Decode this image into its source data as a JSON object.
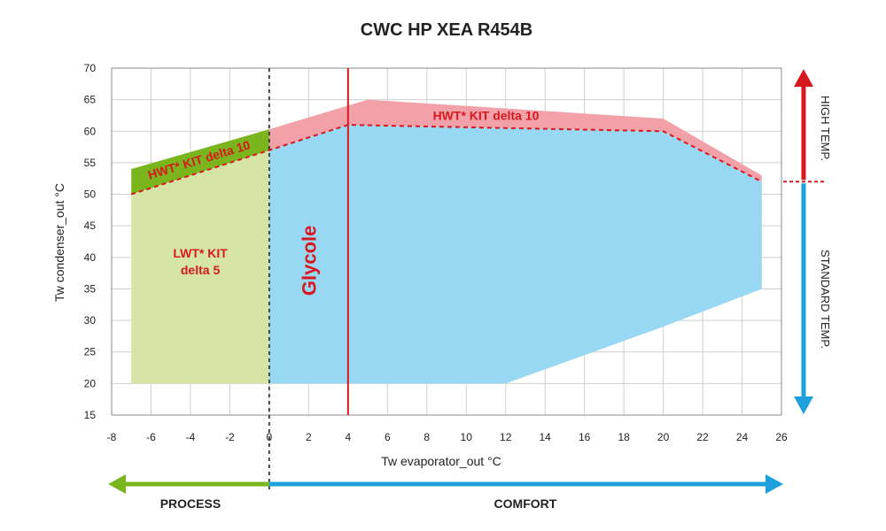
{
  "chart_data": {
    "type": "area",
    "title": "CWC HP XEA R454B",
    "xlabel": "Tw evaporator_out °C",
    "ylabel": "Tw condenser_out °C",
    "xlim": [
      -8,
      26
    ],
    "ylim": [
      15,
      70
    ],
    "x_ticks": [
      -8,
      -6,
      -4,
      -2,
      0,
      2,
      4,
      6,
      8,
      10,
      12,
      14,
      16,
      18,
      20,
      22,
      24,
      26
    ],
    "y_ticks": [
      15,
      20,
      25,
      30,
      35,
      40,
      45,
      50,
      55,
      60,
      65,
      70
    ],
    "grid": true,
    "regions": [
      {
        "name": "lwt-kit",
        "color": "#d6e4a6",
        "points": [
          [
            -7,
            20
          ],
          [
            0,
            20
          ],
          [
            0,
            57
          ],
          [
            -7,
            50
          ]
        ]
      },
      {
        "name": "hwt-kit-process",
        "color": "#7ab51d",
        "points": [
          [
            -7,
            50
          ],
          [
            0,
            57
          ],
          [
            0,
            60.3
          ],
          [
            -7,
            54
          ]
        ]
      },
      {
        "name": "standard",
        "color": "#99d8f2",
        "points": [
          [
            0,
            20
          ],
          [
            12,
            20
          ],
          [
            20,
            29
          ],
          [
            25,
            35
          ],
          [
            25,
            52
          ],
          [
            20,
            60
          ],
          [
            4,
            61
          ],
          [
            0,
            57
          ]
        ]
      },
      {
        "name": "hwt-kit-comfort",
        "color": "#f2a1a8",
        "points": [
          [
            0,
            57
          ],
          [
            4,
            61
          ],
          [
            20,
            60
          ],
          [
            25,
            52
          ],
          [
            25,
            53
          ],
          [
            20,
            62
          ],
          [
            5,
            65
          ],
          [
            0,
            60.3
          ]
        ]
      }
    ],
    "boundary_dashed": [
      [
        -7,
        50
      ],
      [
        0,
        57
      ],
      [
        4,
        61
      ],
      [
        20,
        60
      ],
      [
        25,
        52
      ]
    ],
    "process_comfort_divider_x": 0,
    "glycol_line_x": 4,
    "labels": {
      "hwt_process": "HWT* KIT delta 10",
      "hwt_comfort": "HWT* KIT delta 10",
      "lwt_line1": "LWT* KIT",
      "lwt_line2": "delta 5",
      "glycol": "Glycole"
    },
    "right_bands": {
      "high": "HIGH TEMP.",
      "standard": "STANDARD TEMP.",
      "divider_y": 52,
      "high_color": "#d7191f",
      "standard_color": "#1ea0dc"
    },
    "bottom_bands": {
      "process": "PROCESS",
      "comfort": "COMFORT",
      "process_range": [
        -8,
        0
      ],
      "comfort_range": [
        0,
        26
      ],
      "process_color": "#7ab51d",
      "comfort_color": "#1ea0dc"
    }
  }
}
